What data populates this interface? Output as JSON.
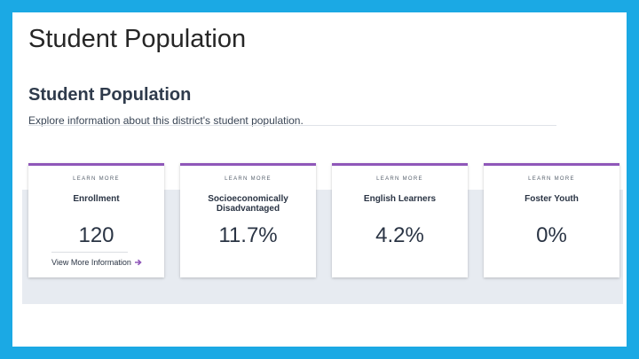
{
  "slide": {
    "title": "Student Population"
  },
  "section": {
    "title": "Student Population",
    "subtitle": "Explore information about this district's student population."
  },
  "cards": [
    {
      "learn_more": "LEARN MORE",
      "label": "Enrollment",
      "value": "120",
      "more_link": "View More Information",
      "icon": "arrow-right-icon"
    },
    {
      "learn_more": "LEARN MORE",
      "label": "Socioeconomically Disadvantaged",
      "value": "11.7%"
    },
    {
      "learn_more": "LEARN MORE",
      "label": "English Learners",
      "value": "4.2%"
    },
    {
      "learn_more": "LEARN MORE",
      "label": "Foster Youth",
      "value": "0%"
    }
  ],
  "colors": {
    "accent": "#8f57b9",
    "frame": "#1ba9e4",
    "band": "#e7ebf1"
  }
}
